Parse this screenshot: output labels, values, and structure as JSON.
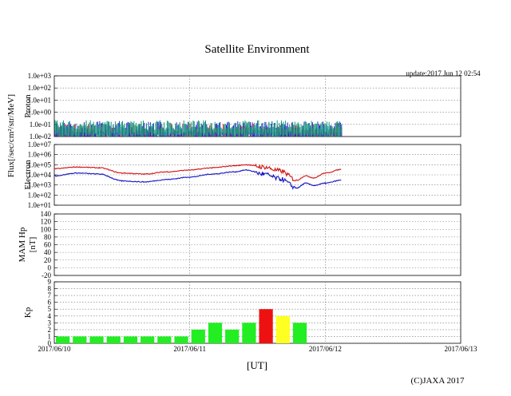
{
  "title": "Satellite Environment",
  "update_text": "update:2017 Jun 12 02:54",
  "copyright": "(C)JAXA 2017",
  "xlabel": "[UT]",
  "flux_label": "Flux[/sec/cm²/str/MeV]",
  "x_ticks": [
    "2017/06/10",
    "2017/06/11",
    "2017/06/12",
    "2017/06/13"
  ],
  "colors": {
    "proton_red": "#e00000",
    "proton_blue": "#1010d0",
    "proton_green": "#009070",
    "electron_red": "#d01010",
    "electron_blue": "#1010c0",
    "kp_green": "#22ee22",
    "kp_yellow": "#ffff22",
    "kp_red": "#ee1111",
    "grid": "#777777"
  },
  "chart_data": [
    {
      "type": "line",
      "name": "proton",
      "ylabel": "Proton",
      "y_scale": "log",
      "ylim": [
        0.01,
        1000
      ],
      "y_ticks": [
        "1.0e-02",
        "1.0e-01",
        "1.0e+00",
        "1.0e+01",
        "1.0e+02",
        "1.0e+03"
      ],
      "x_range_days": [
        "2017/06/10",
        "2017/06/13"
      ],
      "data_end": "2017/06/12 02:54",
      "series": [
        {
          "color_key": "proton_green",
          "baseline": 0.09,
          "spread": 0.4
        },
        {
          "color_key": "proton_blue",
          "baseline": 0.06,
          "spread": 0.5
        },
        {
          "color_key": "proton_red",
          "baseline": 0.03,
          "spread": 0.6
        }
      ]
    },
    {
      "type": "line",
      "name": "electron",
      "ylabel": "Electron",
      "y_scale": "log",
      "ylim": [
        10,
        10000000
      ],
      "y_ticks": [
        "1.0e+01",
        "1.0e+02",
        "1.0e+03",
        "1.0e+04",
        "1.0e+05",
        "1.0e+06",
        "1.0e+07"
      ],
      "series": [
        {
          "color_key": "electron_red",
          "x": [
            "2017/06/10 00:00",
            "2017/06/10 04:00",
            "2017/06/10 08:00",
            "2017/06/10 12:00",
            "2017/06/10 16:00",
            "2017/06/10 20:00",
            "2017/06/11 00:00",
            "2017/06/11 04:00",
            "2017/06/11 08:00",
            "2017/06/11 10:00",
            "2017/06/11 13:00",
            "2017/06/11 16:00",
            "2017/06/11 19:00",
            "2017/06/11 20:30",
            "2017/06/11 22:00",
            "2017/06/12 00:00",
            "2017/06/12 02:54"
          ],
          "y": [
            40000,
            60000,
            50000,
            15000,
            12000,
            20000,
            30000,
            50000,
            80000,
            100000,
            60000,
            25000,
            3000,
            8000,
            5000,
            15000,
            35000
          ]
        },
        {
          "color_key": "electron_blue",
          "x": [
            "2017/06/10 00:00",
            "2017/06/10 04:00",
            "2017/06/10 08:00",
            "2017/06/10 12:00",
            "2017/06/10 16:00",
            "2017/06/10 20:00",
            "2017/06/11 00:00",
            "2017/06/11 04:00",
            "2017/06/11 08:00",
            "2017/06/11 10:00",
            "2017/06/11 13:00",
            "2017/06/11 16:00",
            "2017/06/11 19:00",
            "2017/06/11 20:30",
            "2017/06/11 22:00",
            "2017/06/12 00:00",
            "2017/06/12 02:54"
          ],
          "y": [
            8000,
            15000,
            12000,
            2500,
            2000,
            3500,
            6000,
            12000,
            20000,
            30000,
            12000,
            4000,
            500,
            1500,
            900,
            1500,
            3000
          ]
        }
      ]
    },
    {
      "type": "line",
      "name": "mam-hp",
      "ylabel": "MAM Hp",
      "ylabel2": "[nT]",
      "ylim": [
        -20,
        140
      ],
      "y_ticks": [
        "-20",
        "0",
        "20",
        "40",
        "60",
        "80",
        "100",
        "120",
        "140"
      ],
      "series": []
    },
    {
      "type": "bar",
      "name": "kp",
      "ylabel": "Kp",
      "ylim": [
        0,
        9
      ],
      "y_ticks": [
        "0",
        "1",
        "2",
        "3",
        "4",
        "5",
        "6",
        "7",
        "8",
        "9"
      ],
      "bar_hours": 3,
      "start": "2017/06/10 00:00",
      "values": [
        1,
        1,
        1,
        1,
        1,
        1,
        1,
        1,
        2,
        3,
        2,
        3,
        5,
        4,
        3
      ],
      "color_keys": [
        "kp_green",
        "kp_green",
        "kp_green",
        "kp_green",
        "kp_green",
        "kp_green",
        "kp_green",
        "kp_green",
        "kp_green",
        "kp_green",
        "kp_green",
        "kp_green",
        "kp_red",
        "kp_yellow",
        "kp_green"
      ]
    }
  ]
}
